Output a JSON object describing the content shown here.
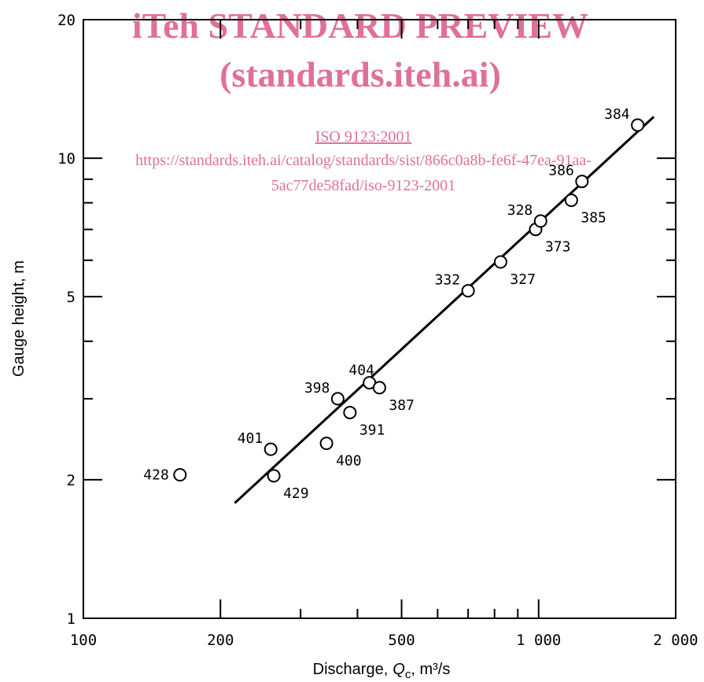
{
  "watermark": {
    "line1": "iTeh STANDARD PREVIEW",
    "line2": "(standards.iteh.ai)",
    "line3": "ISO 9123:2001",
    "line4": "https://standards.iteh.ai/catalog/standards/sist/866c0a8b-fe6f-47ea-91aa-",
    "line5": "5ac77de58fad/iso-9123-2001",
    "color": "#e0709a"
  },
  "chart_data": {
    "type": "scatter",
    "title": "",
    "xlabel_prefix": "Discharge,",
    "xlabel_var": "Q",
    "xlabel_sub": "c",
    "xlabel_suffix": ", m³/s",
    "ylabel": "Gauge height, m",
    "xscale": "log",
    "yscale": "log",
    "xlim": [
      100,
      2000
    ],
    "ylim": [
      1,
      20
    ],
    "x_tick_labels": [
      {
        "value": 100,
        "label": "100"
      },
      {
        "value": 200,
        "label": "200"
      },
      {
        "value": 500,
        "label": "500"
      },
      {
        "value": 1000,
        "label": "1 000"
      },
      {
        "value": 2000,
        "label": "2 000"
      }
    ],
    "x_minor_ticks": [
      300,
      400,
      600,
      700,
      800,
      900
    ],
    "y_tick_labels": [
      {
        "value": 1,
        "label": "1"
      },
      {
        "value": 2,
        "label": "2"
      },
      {
        "value": 5,
        "label": "5"
      },
      {
        "value": 10,
        "label": "10"
      },
      {
        "value": 20,
        "label": "20"
      }
    ],
    "y_minor_ticks": [
      3,
      4,
      6,
      7,
      8,
      9
    ],
    "points": [
      {
        "id": "428",
        "x": 163,
        "y": 2.05,
        "label_side": "left"
      },
      {
        "id": "429",
        "x": 262,
        "y": 2.04,
        "label_side": "right-below"
      },
      {
        "id": "401",
        "x": 258,
        "y": 2.33,
        "label_side": "left-above"
      },
      {
        "id": "400",
        "x": 342,
        "y": 2.4,
        "label_side": "right-below"
      },
      {
        "id": "391",
        "x": 385,
        "y": 2.8,
        "label_side": "right-below"
      },
      {
        "id": "398",
        "x": 362,
        "y": 3.0,
        "label_side": "left-above"
      },
      {
        "id": "404",
        "x": 425,
        "y": 3.25,
        "label_side": "above"
      },
      {
        "id": "387",
        "x": 447,
        "y": 3.17,
        "label_side": "right-below"
      },
      {
        "id": "332",
        "x": 700,
        "y": 5.15,
        "label_side": "left-above"
      },
      {
        "id": "327",
        "x": 825,
        "y": 5.95,
        "label_side": "right-below"
      },
      {
        "id": "373",
        "x": 985,
        "y": 7.0,
        "label_side": "right-below"
      },
      {
        "id": "328",
        "x": 1010,
        "y": 7.3,
        "label_side": "left-above"
      },
      {
        "id": "385",
        "x": 1180,
        "y": 8.1,
        "label_side": "right-below"
      },
      {
        "id": "386",
        "x": 1245,
        "y": 8.9,
        "label_side": "left-above"
      },
      {
        "id": "384",
        "x": 1650,
        "y": 11.8,
        "label_side": "left-above"
      }
    ],
    "fit_line": {
      "x": [
        215,
        1790
      ],
      "y": [
        1.78,
        12.3
      ]
    },
    "grid": false,
    "legend": "none"
  }
}
